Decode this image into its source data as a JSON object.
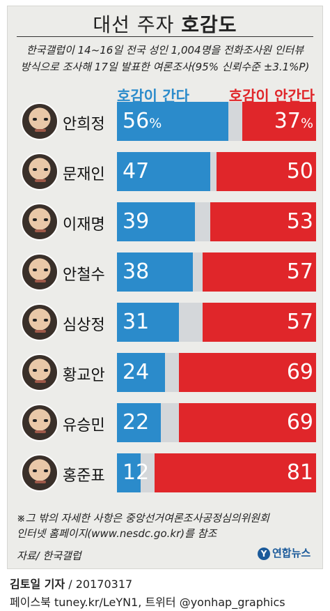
{
  "header": {
    "title_prefix": "대선 주자",
    "title_strong": "호감도",
    "subtitle_line1": "한국갤럽이 14~16일 전국 성인 1,004명을 전화조사원 인터뷰",
    "subtitle_line2": "방식으로 조사해 17일 발표한 여론조사(95% 신뢰수준 ±3.1%P)"
  },
  "legend": {
    "positive": "호감이 간다",
    "negative": "호감이 안간다",
    "positive_color": "#2b8bcb",
    "negative_color": "#e0262a",
    "remainder_color": "#d4d7da"
  },
  "chart_data": {
    "type": "bar",
    "orientation": "horizontal-stacked",
    "categories": [
      "안희정",
      "문재인",
      "이재명",
      "안철수",
      "심상정",
      "황교안",
      "유승민",
      "홍준표"
    ],
    "series": [
      {
        "name": "호감이 간다",
        "values": [
          56,
          47,
          39,
          38,
          31,
          24,
          22,
          12
        ]
      },
      {
        "name": "호감이 안간다",
        "values": [
          37,
          50,
          53,
          57,
          57,
          69,
          69,
          81
        ]
      }
    ],
    "value_labels_pos": [
      "56",
      "47",
      "39",
      "38",
      "31",
      "24",
      "22",
      "12"
    ],
    "value_labels_neg": [
      "37",
      "50",
      "53",
      "57",
      "57",
      "69",
      "69",
      "81"
    ],
    "percent_sign": "%",
    "xlim": [
      0,
      100
    ]
  },
  "footer": {
    "note_line1": "※그 밖의 자세한 사항은 중앙선거여론조사공정심의위원회",
    "note_line2": "인터넷 홈페이지(www.nesdc.go.kr)를 참조",
    "source": "자료/ 한국갤럽",
    "logo_text": "연합뉴스",
    "reporter": "김토일 기자",
    "date": " / 20170317",
    "social": "페이스북 tuney.kr/LeYN1, 트위터 @yonhap_graphics"
  }
}
